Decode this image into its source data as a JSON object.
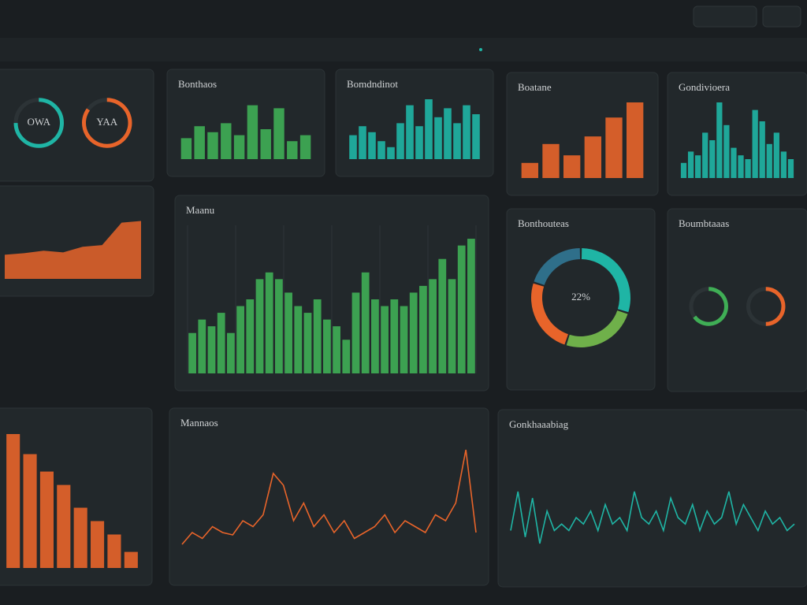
{
  "chart_data": [
    {
      "type": "gauge",
      "labels": [
        "OWA",
        "YAA"
      ],
      "values": [
        75,
        85
      ],
      "colors": [
        "#1fb5a5",
        "#e8642a"
      ],
      "ylim": [
        0,
        100
      ]
    },
    {
      "type": "bar",
      "title": "Bonthaos",
      "values": [
        35,
        55,
        45,
        60,
        40,
        90,
        50,
        85,
        30,
        40
      ],
      "color": "#3fae55",
      "ylim": [
        0,
        100
      ]
    },
    {
      "type": "bar",
      "title": "Bomdndinot",
      "values": [
        40,
        55,
        45,
        30,
        20,
        60,
        90,
        55,
        100,
        70,
        85,
        60,
        90,
        75
      ],
      "color": "#1fb5a5",
      "ylim": [
        0,
        100
      ]
    },
    {
      "type": "bar",
      "title": "Boatane",
      "values": [
        20,
        45,
        30,
        55,
        80,
        100
      ],
      "color": "#e8642a",
      "ylim": [
        0,
        100
      ]
    },
    {
      "type": "bar",
      "title": "Gondivioera",
      "values": [
        20,
        35,
        30,
        60,
        50,
        100,
        70,
        40,
        30,
        25,
        90,
        75,
        45,
        60,
        35,
        25
      ],
      "color": "#1fb5a5",
      "ylim": [
        0,
        100
      ]
    },
    {
      "type": "area",
      "values": [
        30,
        32,
        35,
        33,
        40,
        42,
        70,
        72
      ],
      "color": "#e8642a",
      "ylim": [
        0,
        100
      ]
    },
    {
      "type": "bar",
      "title": "Maanu",
      "values": [
        30,
        40,
        35,
        45,
        30,
        50,
        55,
        70,
        75,
        70,
        60,
        50,
        45,
        55,
        40,
        35,
        25,
        60,
        75,
        55,
        50,
        55,
        50,
        60,
        65,
        70,
        85,
        70,
        95,
        100
      ],
      "color": "#3fae55",
      "ylim": [
        0,
        110
      ],
      "grid": true
    },
    {
      "type": "donut",
      "title": "Bonthouteas",
      "center_label": "22%",
      "values": [
        30,
        25,
        25,
        20
      ],
      "colors": [
        "#1fb5a5",
        "#6fb04a",
        "#e8642a",
        "#2f6f8a"
      ]
    },
    {
      "type": "gauge",
      "title": "Boumbtaaas",
      "values": [
        65,
        50
      ],
      "colors": [
        "#3fae55",
        "#e8642a"
      ],
      "ylim": [
        0,
        100
      ]
    },
    {
      "type": "bar",
      "values": [
        100,
        85,
        72,
        62,
        45,
        35,
        25,
        12
      ],
      "color": "#e8642a",
      "ylim": [
        0,
        110
      ]
    },
    {
      "type": "line",
      "title": "Mannaos",
      "values": [
        20,
        30,
        25,
        35,
        30,
        28,
        40,
        35,
        45,
        80,
        70,
        40,
        55,
        35,
        45,
        30,
        40,
        25,
        30,
        35,
        45,
        30,
        40,
        35,
        30,
        45,
        40,
        55,
        100,
        30
      ],
      "color": "#e8642a",
      "ylim": [
        0,
        110
      ]
    },
    {
      "type": "line",
      "title": "Gonkhaaabiag",
      "values": [
        30,
        60,
        25,
        55,
        20,
        45,
        30,
        35,
        30,
        40,
        35,
        45,
        30,
        50,
        35,
        40,
        30,
        60,
        40,
        35,
        45,
        30,
        55,
        40,
        35,
        50,
        30,
        45,
        35,
        40,
        60,
        35,
        50,
        40,
        30,
        45,
        35,
        40,
        30,
        35
      ],
      "color": "#1fb5a5",
      "ylim": [
        0,
        100
      ]
    }
  ]
}
